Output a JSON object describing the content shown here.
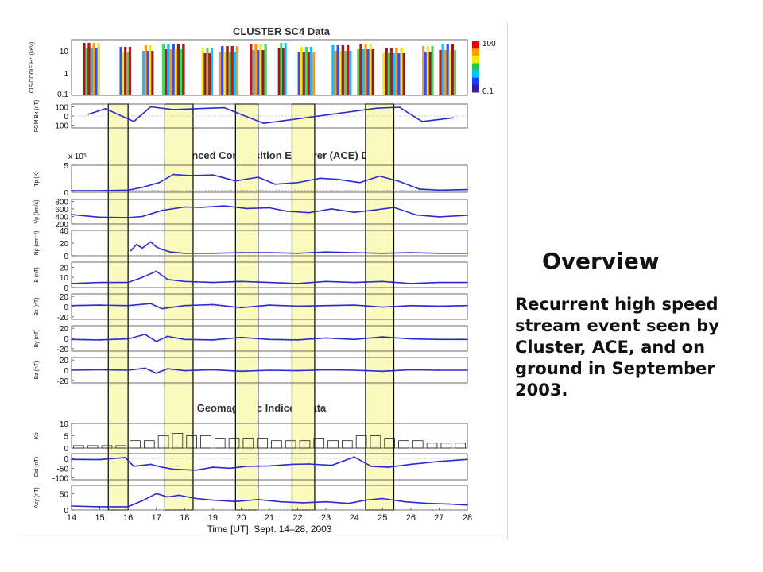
{
  "overview": {
    "title": "Overview",
    "text": "Recurrent high speed stream event seen by Cluster, ACE, and on ground in September 2003."
  },
  "chart_data": {
    "type": "line",
    "section_titles": {
      "cluster": "CLUSTER SC4 Data",
      "ace": "Advanced Composition Explorer (ACE) Data",
      "geomag": "Geomagnetic Indices Data"
    },
    "xlabel": "Time [UT], Sept. 14–28, 2003",
    "xlim": [
      14,
      28
    ],
    "xticks": [
      "14",
      "15",
      "16",
      "17",
      "18",
      "19",
      "20",
      "21",
      "22",
      "23",
      "24",
      "25",
      "26",
      "27",
      "28"
    ],
    "highlight_color": "#fafabf",
    "series_color": "#2b2bd0",
    "highlight_intervals": [
      [
        15.3,
        16.0
      ],
      [
        17.3,
        18.3
      ],
      [
        19.8,
        20.6
      ],
      [
        21.8,
        22.6
      ],
      [
        24.4,
        25.4
      ]
    ],
    "spectrogram": {
      "ylabel": "CIS/CODIF H⁺ (keV)",
      "yticks": [
        "10",
        "1",
        "0.1"
      ],
      "colorbar_ticks": [
        "100",
        "0.1"
      ],
      "active_intervals": [
        [
          14.4,
          15.0
        ],
        [
          15.7,
          16.1
        ],
        [
          16.5,
          16.9
        ],
        [
          17.2,
          18.0
        ],
        [
          18.6,
          19.0
        ],
        [
          19.2,
          19.9
        ],
        [
          20.3,
          20.9
        ],
        [
          21.3,
          21.6
        ],
        [
          22.0,
          22.6
        ],
        [
          23.2,
          23.9
        ],
        [
          24.1,
          24.7
        ],
        [
          25.0,
          25.8
        ],
        [
          26.4,
          26.8
        ],
        [
          27.0,
          27.6
        ]
      ],
      "zlim": [
        0.1,
        100
      ]
    },
    "panels": [
      {
        "id": "fgm-bx",
        "ylabel": "FGM Bx (nT)",
        "yticks": [
          100,
          0,
          -100
        ],
        "ylim": [
          -130,
          130
        ],
        "baseline": 0,
        "x": [
          14.6,
          15.2,
          16.2,
          16.8,
          17.6,
          19.4,
          20.8,
          24.8,
          25.6,
          26.4,
          27.5
        ],
        "y": [
          20,
          80,
          -60,
          100,
          70,
          90,
          -80,
          85,
          95,
          -60,
          -20
        ]
      },
      {
        "id": "ace-tp",
        "ylabel": "Tp (K)",
        "multiplier": "x 10⁵",
        "yticks": [
          5,
          0
        ],
        "ylim": [
          0,
          5
        ],
        "baseline": 0.4,
        "x": [
          14,
          15,
          16,
          16.5,
          17.1,
          17.6,
          18.2,
          19,
          19.8,
          20.6,
          21.2,
          22,
          22.8,
          23.4,
          24.2,
          24.9,
          25.6,
          26.3,
          27,
          28
        ],
        "y": [
          0.3,
          0.3,
          0.4,
          0.9,
          1.8,
          3.3,
          3.1,
          3.2,
          2.1,
          2.8,
          1.5,
          1.8,
          2.6,
          2.4,
          1.8,
          3.0,
          2.0,
          0.6,
          0.4,
          0.5
        ]
      },
      {
        "id": "ace-vp",
        "ylabel": "Vp (km/s)",
        "yticks": [
          800,
          600,
          400,
          200
        ],
        "ylim": [
          200,
          850
        ],
        "baseline": null,
        "x": [
          14,
          15,
          16,
          16.5,
          17.2,
          18,
          18.6,
          19.4,
          20.2,
          21,
          21.6,
          22.4,
          23.2,
          24,
          24.8,
          25.4,
          26.2,
          27,
          28
        ],
        "y": [
          450,
          380,
          370,
          400,
          560,
          650,
          640,
          680,
          610,
          630,
          540,
          500,
          600,
          510,
          580,
          640,
          440,
          390,
          430
        ]
      },
      {
        "id": "ace-np",
        "ylabel": "Np (cm⁻³)",
        "yticks": [
          40,
          20,
          0
        ],
        "ylim": [
          0,
          40
        ],
        "baseline": 0,
        "x": [
          16.1,
          16.3,
          16.5,
          16.8,
          17,
          17.2,
          17.5,
          18,
          19,
          20,
          21,
          22,
          23,
          24,
          25,
          26,
          27,
          28
        ],
        "y": [
          8,
          18,
          12,
          22,
          14,
          10,
          6,
          4,
          4,
          5,
          5,
          4,
          6,
          5,
          4,
          5,
          4,
          4
        ]
      },
      {
        "id": "ace-b",
        "ylabel": "B (nT)",
        "yticks": [
          20,
          10,
          0
        ],
        "ylim": [
          0,
          25
        ],
        "baseline": 0,
        "x": [
          14,
          15,
          16,
          16.5,
          17,
          17.4,
          18,
          19,
          20,
          21,
          22,
          23,
          24,
          25,
          26,
          27,
          28
        ],
        "y": [
          4,
          5,
          5,
          10,
          16,
          8,
          6,
          5,
          6,
          5,
          4,
          6,
          5,
          6,
          4,
          5,
          5
        ]
      },
      {
        "id": "ace-bx",
        "ylabel": "Bx (nT)",
        "yticks": [
          20,
          0,
          -20
        ],
        "ylim": [
          -25,
          25
        ],
        "baseline": 0,
        "x": [
          14,
          15,
          16,
          16.8,
          17.2,
          18,
          19,
          20,
          21,
          22,
          23,
          24,
          25,
          26,
          27,
          28
        ],
        "y": [
          2,
          3,
          2,
          6,
          -4,
          2,
          4,
          -2,
          3,
          1,
          2,
          3,
          -1,
          2,
          1,
          2
        ]
      },
      {
        "id": "ace-by",
        "ylabel": "By (nT)",
        "yticks": [
          20,
          0,
          -20
        ],
        "ylim": [
          -25,
          25
        ],
        "baseline": 0,
        "x": [
          14,
          15,
          16,
          16.6,
          17,
          17.4,
          18,
          19,
          20,
          21,
          22,
          23,
          24,
          25,
          26,
          27,
          28
        ],
        "y": [
          -2,
          -3,
          -1,
          8,
          -6,
          4,
          -2,
          -3,
          2,
          -2,
          -3,
          1,
          -2,
          3,
          -1,
          -2,
          -2
        ]
      },
      {
        "id": "ace-bz",
        "ylabel": "Bz (nT)",
        "yticks": [
          20,
          0,
          -20
        ],
        "ylim": [
          -25,
          25
        ],
        "baseline": 0,
        "x": [
          14,
          15,
          16,
          16.6,
          17,
          17.4,
          18,
          19,
          20,
          21,
          22,
          23,
          24,
          25,
          26,
          27,
          28
        ],
        "y": [
          0,
          1,
          0,
          4,
          -6,
          3,
          -1,
          1,
          -2,
          0,
          -1,
          1,
          0,
          -2,
          1,
          0,
          0
        ]
      },
      {
        "id": "kp",
        "ylabel": "Kp",
        "type": "bar",
        "yticks": [
          10,
          5,
          0
        ],
        "ylim": [
          0,
          10
        ],
        "baseline": 0,
        "x": [
          14.25,
          14.75,
          15.25,
          15.75,
          16.25,
          16.75,
          17.25,
          17.75,
          18.25,
          18.75,
          19.25,
          19.75,
          20.25,
          20.75,
          21.25,
          21.75,
          22.25,
          22.75,
          23.25,
          23.75,
          24.25,
          24.75,
          25.25,
          25.75,
          26.25,
          26.75,
          27.25,
          27.75
        ],
        "y": [
          1,
          1,
          1,
          1,
          3,
          3,
          5,
          6,
          5,
          5,
          4,
          4,
          4,
          4,
          3,
          3,
          3,
          4,
          3,
          3,
          5,
          5,
          4,
          3,
          3,
          2,
          2,
          2
        ]
      },
      {
        "id": "dst",
        "ylabel": "Dst (nT)",
        "yticks": [
          0,
          -50,
          -100
        ],
        "ylim": [
          -110,
          25
        ],
        "baseline": 0,
        "x": [
          14,
          15,
          15.9,
          16.2,
          16.8,
          17.2,
          17.6,
          18.4,
          19,
          19.6,
          20.2,
          21,
          21.8,
          22.4,
          23.2,
          24,
          24.6,
          25.2,
          26,
          27,
          28
        ],
        "y": [
          -5,
          -6,
          5,
          -40,
          -30,
          -45,
          -55,
          -60,
          -45,
          -50,
          -40,
          -38,
          -30,
          -28,
          -35,
          8,
          -40,
          -45,
          -30,
          -15,
          -5
        ]
      },
      {
        "id": "asy",
        "ylabel": "Asy (nT)",
        "yticks": [
          50,
          0
        ],
        "ylim": [
          0,
          75
        ],
        "baseline": 0,
        "x": [
          14,
          15,
          16,
          16.5,
          17,
          17.4,
          17.8,
          18.4,
          19,
          19.8,
          20.6,
          21.4,
          22.2,
          23,
          23.8,
          24.4,
          25,
          25.8,
          26.6,
          27.4,
          28
        ],
        "y": [
          12,
          10,
          10,
          28,
          50,
          40,
          45,
          35,
          30,
          26,
          32,
          25,
          22,
          25,
          20,
          30,
          35,
          25,
          20,
          18,
          15
        ]
      }
    ]
  }
}
